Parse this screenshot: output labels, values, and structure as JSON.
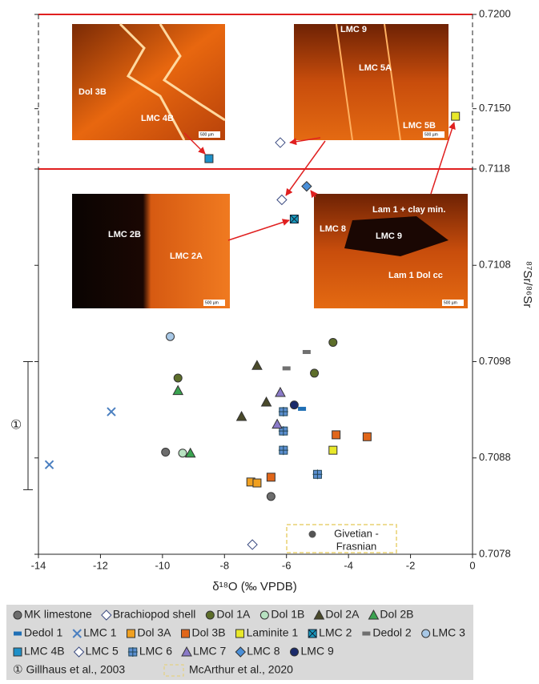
{
  "chart_data": {
    "type": "scatter",
    "xlabel": "δ¹⁸O (‰ VPDB)",
    "ylabel": "⁸⁷Sr/⁸⁶Sr",
    "xlim": [
      -14,
      0
    ],
    "xticks": [
      -14,
      -12,
      -10,
      -8,
      -6,
      -4,
      -2,
      0
    ],
    "ylim": [
      0.7078,
      0.72
    ],
    "y_break": 0.7118,
    "yticks": [
      0.7078,
      0.7088,
      0.7098,
      0.7108,
      0.7118,
      {
        "value": 0.715,
        "label": "0.7150"
      },
      {
        "value": 0.72,
        "label": "0.7200"
      }
    ],
    "series": [
      {
        "name": "MK limestone",
        "marker": "circle",
        "color": "#6d6d6d",
        "x": [
          -9.9,
          -6.5
        ],
        "y": [
          0.70886,
          0.7084
        ]
      },
      {
        "name": "Brachiopod shell",
        "marker": "diamond",
        "color": "#ffffff",
        "x": [
          -7.1
        ],
        "y": [
          0.7079
        ]
      },
      {
        "name": "Dol 1A",
        "marker": "circle",
        "color": "#5d6e2a",
        "x": [
          -9.5,
          -4.5,
          -5.1
        ],
        "y": [
          0.70963,
          0.71,
          0.70968
        ]
      },
      {
        "name": "Dol 1B",
        "marker": "circle",
        "color": "#b7e2c1",
        "x": [
          -9.35
        ],
        "y": [
          0.70885
        ]
      },
      {
        "name": "Dol 2A",
        "marker": "triangle",
        "color": "#4a4a2a",
        "x": [
          -6.95,
          -7.45,
          -6.65
        ],
        "y": [
          0.70976,
          0.70923,
          0.70938
        ]
      },
      {
        "name": "Dol 2B",
        "marker": "triangle",
        "color": "#3aa350",
        "x": [
          -9.5,
          -9.1
        ],
        "y": [
          0.7095,
          0.70885
        ]
      },
      {
        "name": "Dedol 1",
        "marker": "dash",
        "color": "#1f6fb5",
        "x": [
          -5.5
        ],
        "y": [
          0.70931
        ]
      },
      {
        "name": "LMC 1",
        "marker": "x",
        "color": "#4a7fc0",
        "x": [
          -13.65,
          -11.65
        ],
        "y": [
          0.70873,
          0.70928
        ]
      },
      {
        "name": "Dol 3A",
        "marker": "square",
        "color": "#f0a020",
        "x": [
          -7.15,
          -6.95
        ],
        "y": [
          0.70855,
          0.70854
        ]
      },
      {
        "name": "Dol 3B",
        "marker": "square",
        "color": "#e0661a",
        "x": [
          -4.4,
          -3.4,
          -6.5
        ],
        "y": [
          0.70904,
          0.70902,
          0.7086
        ]
      },
      {
        "name": "Laminite 1",
        "marker": "square",
        "color": "#e8e82a",
        "x": [
          -0.55,
          -4.5
        ],
        "y": [
          0.7146,
          0.70888
        ]
      },
      {
        "name": "LMC 2",
        "marker": "asterisk",
        "color": "#1a9bc0",
        "x": [
          -5.75
        ],
        "y": [
          0.71128
        ]
      },
      {
        "name": "Dedol 2",
        "marker": "dash",
        "color": "#707070",
        "x": [
          -5.35,
          -6.0
        ],
        "y": [
          0.7099,
          0.70973
        ]
      },
      {
        "name": "LMC 3",
        "marker": "circle",
        "color": "#a8c8e6",
        "x": [
          -9.75
        ],
        "y": [
          0.71006
        ]
      },
      {
        "name": "LMC 4B",
        "marker": "square",
        "color": "#1e90c8",
        "x": [
          -8.5
        ],
        "y": [
          0.71235
        ]
      },
      {
        "name": "LMC 5",
        "marker": "diamond",
        "color": "#ffffff",
        "x": [
          -6.2,
          -6.15
        ],
        "y": [
          0.7132,
          0.71148
        ]
      },
      {
        "name": "LMC 6",
        "marker": "plussquare",
        "color": "#5b8fd0",
        "x": [
          -6.1,
          -6.1,
          -6.1,
          -5.0
        ],
        "y": [
          0.70928,
          0.70908,
          0.70888,
          0.70863
        ]
      },
      {
        "name": "LMC 7",
        "marker": "triangle",
        "color": "#8a7ac8",
        "x": [
          -6.2,
          -6.3
        ],
        "y": [
          0.70948,
          0.70915
        ]
      },
      {
        "name": "LMC 8",
        "marker": "diamond",
        "color": "#4a8fd8",
        "x": [
          -5.35
        ],
        "y": [
          0.71162
        ]
      },
      {
        "name": "LMC 9",
        "marker": "circle",
        "color": "#1a2a6a",
        "x": [
          -5.75
        ],
        "y": [
          0.70935
        ]
      }
    ],
    "range_bar": {
      "label": "①",
      "range": [
        0.70847,
        0.7098
      ]
    },
    "box_annotation": [
      "Givetian -",
      "Frasnian"
    ],
    "legend_extra": [
      "① Gillhaus et al., 2003",
      "McArthur et al., 2020"
    ],
    "insets": [
      {
        "labels": [
          "Dol 3B",
          "LMC 4B",
          "500 µm"
        ]
      },
      {
        "labels": [
          "LMC 9",
          "LMC 5A",
          "LMC 5B",
          "500 µm"
        ]
      },
      {
        "labels": [
          "LMC 2B",
          "LMC 2A",
          "500 µm"
        ]
      },
      {
        "labels": [
          "Lam 1 + clay min.",
          "LMC 8",
          "LMC 9",
          "Lam 1 Dol cc",
          "500 µm"
        ]
      }
    ]
  }
}
